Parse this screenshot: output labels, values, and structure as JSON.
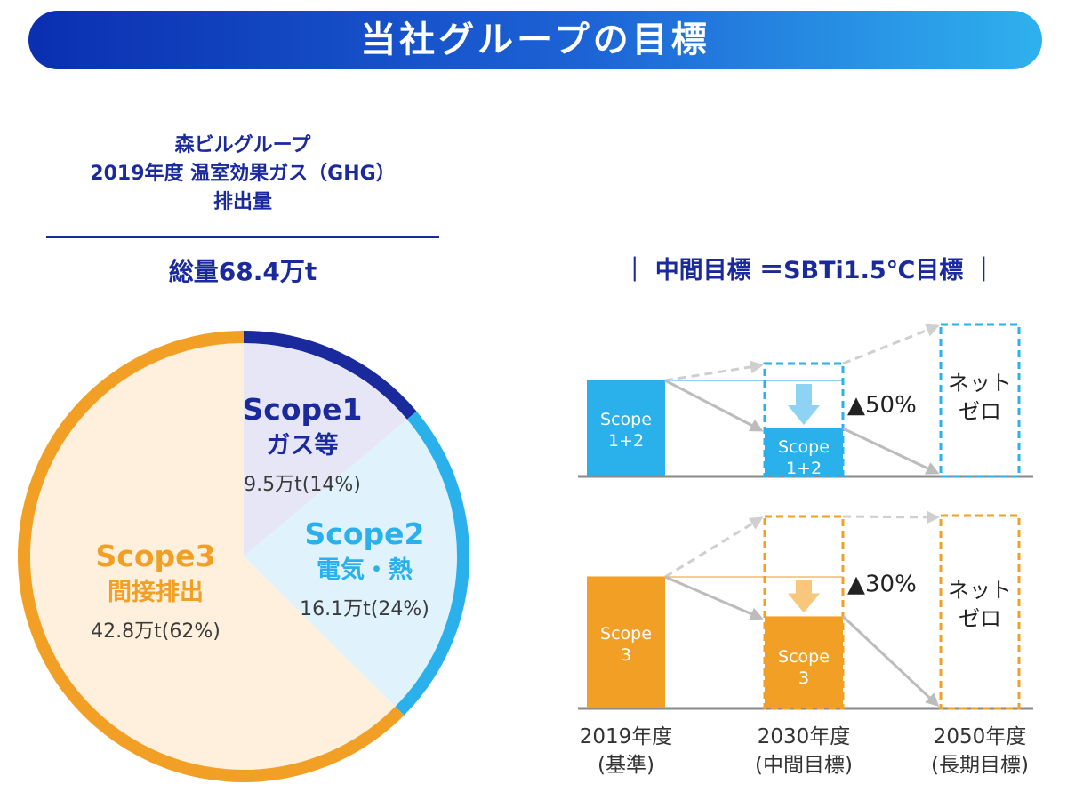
{
  "header": {
    "title": "当社グループの目標"
  },
  "summary": {
    "title_lines": [
      "森ビルグループ",
      "2019年度 温室効果ガス（GHG）",
      "排出量"
    ],
    "total": "総量68.4万t"
  },
  "chart_data": [
    {
      "type": "pie",
      "title": "",
      "slices": [
        {
          "name": "Scope1",
          "sub": "ガス等",
          "value": 9.5,
          "value_text": "9.5万t",
          "percent": 14,
          "percent_text": "(14%)",
          "color": "#1a2a9c",
          "fill": "#e6e6f7"
        },
        {
          "name": "Scope2",
          "sub": "電気・熱",
          "value": 16.1,
          "value_text": "16.1万t",
          "percent": 24,
          "percent_text": "(24%)",
          "color": "#2ab0ea",
          "fill": "#e0f3fc"
        },
        {
          "name": "Scope3",
          "sub": "間接排出",
          "value": 42.8,
          "value_text": "42.8万t",
          "percent": 62,
          "percent_text": "(62%)",
          "color": "#f2a025",
          "fill": "#fef0dc"
        }
      ]
    },
    {
      "type": "bar",
      "title": "中間目標 ＝SBTi1.5℃目標",
      "categories": [
        {
          "line1": "2019年度",
          "line2": "(基準)"
        },
        {
          "line1": "2030年度",
          "line2": "(中間目標)"
        },
        {
          "line1": "2050年度",
          "line2": "(長期目標)"
        }
      ],
      "panels": [
        {
          "name": "Scope 1+2",
          "label_lines": [
            "Scope",
            "1+2"
          ],
          "values": [
            100,
            50,
            0
          ],
          "reduction_text": "▲50%",
          "net_zero_lines": [
            "ネット",
            "ゼロ"
          ],
          "color": "#2ab0ea",
          "arrow_color": "#8fd3f4"
        },
        {
          "name": "Scope 3",
          "label_lines": [
            "Scope",
            "3"
          ],
          "values": [
            100,
            70,
            0
          ],
          "reduction_text": "▲30%",
          "net_zero_lines": [
            "ネット",
            "ゼロ"
          ],
          "color": "#f2a025",
          "arrow_color": "#f8c77c"
        }
      ]
    }
  ]
}
